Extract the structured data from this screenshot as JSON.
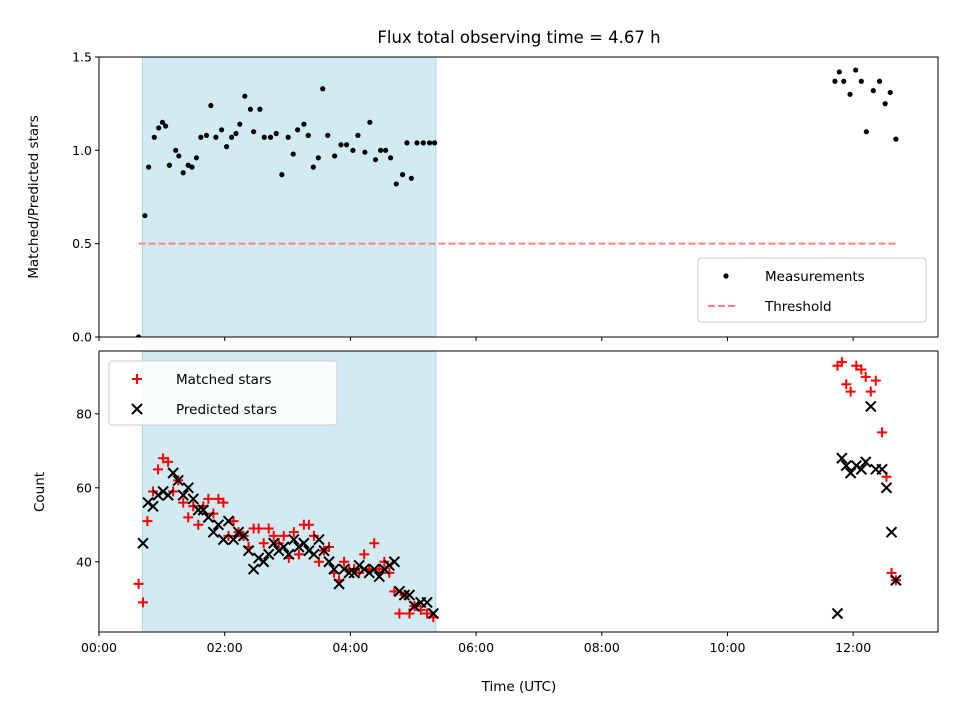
{
  "chart_data": [
    {
      "type": "scatter",
      "title": "Flux total observing time = 4.67 h",
      "xlabel": "",
      "ylabel": "Matched/Predicted stars",
      "xlim": [
        0.0,
        13.35
      ],
      "ylim": [
        0,
        1.5
      ],
      "yticks": [
        0.0,
        0.5,
        1.0,
        1.5
      ],
      "ytick_labels": [
        "0.0",
        "0.5",
        "1.0",
        "1.5"
      ],
      "xticks": [
        0,
        2,
        4,
        6,
        8,
        10,
        12
      ],
      "shaded_region": {
        "x": [
          0.69,
          5.36
        ],
        "color": "#add8e6"
      },
      "legend_position": "lower right",
      "series": [
        {
          "name": "Measurements",
          "style": "point",
          "color": "#000000",
          "x": [
            0.63,
            0.73,
            0.79,
            0.88,
            0.95,
            1.01,
            1.06,
            1.12,
            1.22,
            1.27,
            1.34,
            1.42,
            1.48,
            1.55,
            1.62,
            1.71,
            1.78,
            1.86,
            1.95,
            2.03,
            2.11,
            2.18,
            2.24,
            2.32,
            2.41,
            2.46,
            2.56,
            2.63,
            2.73,
            2.82,
            2.91,
            3.01,
            3.09,
            3.16,
            3.26,
            3.33,
            3.41,
            3.49,
            3.56,
            3.64,
            3.75,
            3.85,
            3.94,
            4.04,
            4.12,
            4.23,
            4.31,
            4.4,
            4.48,
            4.56,
            4.64,
            4.73,
            4.83,
            4.9,
            4.97,
            5.06,
            5.16,
            5.26,
            5.34,
            11.71,
            11.78,
            11.85,
            11.95,
            12.04,
            12.13,
            12.21,
            12.32,
            12.42,
            12.51,
            12.59,
            12.68
          ],
          "y": [
            0.0,
            0.65,
            0.91,
            1.07,
            1.12,
            1.15,
            1.13,
            0.92,
            1.0,
            0.97,
            0.88,
            0.92,
            0.91,
            0.96,
            1.07,
            1.08,
            1.24,
            1.07,
            1.11,
            1.02,
            1.07,
            1.09,
            1.14,
            1.29,
            1.22,
            1.1,
            1.22,
            1.07,
            1.07,
            1.09,
            0.87,
            1.07,
            0.98,
            1.11,
            1.14,
            1.08,
            0.91,
            0.96,
            1.33,
            1.08,
            0.97,
            1.03,
            1.03,
            1.0,
            1.08,
            0.99,
            1.15,
            0.95,
            1.0,
            1.0,
            0.96,
            0.82,
            0.87,
            1.04,
            0.85,
            1.04,
            1.04,
            1.04,
            1.04,
            1.37,
            1.42,
            1.37,
            1.3,
            1.43,
            1.37,
            1.1,
            1.32,
            1.37,
            1.25,
            1.31,
            1.06
          ]
        },
        {
          "name": "Threshold",
          "style": "dashed",
          "color": "#ff7f7f",
          "x": [
            0.63,
            12.68
          ],
          "y": [
            0.5,
            0.5
          ]
        }
      ]
    },
    {
      "type": "scatter",
      "title": "",
      "xlabel": "Time (UTC)",
      "ylabel": "Count",
      "xlim": [
        0.0,
        13.35
      ],
      "ylim": [
        21,
        97
      ],
      "yticks": [
        40,
        60,
        80
      ],
      "ytick_labels": [
        "40",
        "60",
        "80"
      ],
      "xticks": [
        0,
        2,
        4,
        6,
        8,
        10,
        12
      ],
      "xtick_labels": [
        "00:00",
        "02:00",
        "04:00",
        "06:00",
        "08:00",
        "10:00",
        "12:00"
      ],
      "shaded_region": {
        "x": [
          0.69,
          5.36
        ],
        "color": "#add8e6"
      },
      "legend_position": "upper left",
      "series": [
        {
          "name": "Matched stars",
          "marker": "+",
          "color": "#ff0000",
          "x": [
            0.63,
            0.7,
            0.77,
            0.86,
            0.94,
            1.02,
            1.1,
            1.18,
            1.26,
            1.34,
            1.42,
            1.5,
            1.58,
            1.66,
            1.74,
            1.82,
            1.9,
            1.98,
            2.06,
            2.14,
            2.22,
            2.3,
            2.38,
            2.46,
            2.54,
            2.62,
            2.7,
            2.78,
            2.86,
            2.94,
            3.02,
            3.1,
            3.18,
            3.26,
            3.34,
            3.42,
            3.5,
            3.58,
            3.66,
            3.74,
            3.82,
            3.9,
            3.98,
            4.06,
            4.14,
            4.22,
            4.3,
            4.38,
            4.46,
            4.54,
            4.62,
            4.7,
            4.78,
            4.86,
            4.94,
            5.02,
            5.12,
            5.22,
            5.32,
            11.75,
            11.82,
            11.89,
            11.96,
            12.05,
            12.13,
            12.2,
            12.28,
            12.36,
            12.46,
            12.53,
            12.61,
            12.68
          ],
          "y": [
            34,
            29,
            51,
            59,
            65,
            68,
            67,
            59,
            62,
            56,
            52,
            55,
            50,
            55,
            57,
            53,
            57,
            56,
            47,
            51,
            48,
            47,
            44,
            49,
            49,
            45,
            49,
            47,
            45,
            47,
            41,
            48,
            42,
            50,
            50,
            47,
            40,
            43,
            44,
            37,
            35,
            40,
            38,
            38,
            37,
            42,
            38,
            45,
            38,
            40,
            37,
            32,
            26,
            31,
            26,
            28,
            27,
            26,
            25,
            93,
            94,
            88,
            86,
            93,
            92,
            90,
            86,
            89,
            75,
            63,
            37,
            35
          ]
        },
        {
          "name": "Predicted stars",
          "marker": "x",
          "color": "#000000",
          "x": [
            0.7,
            0.78,
            0.86,
            0.94,
            1.02,
            1.1,
            1.18,
            1.26,
            1.34,
            1.42,
            1.5,
            1.58,
            1.66,
            1.74,
            1.82,
            1.9,
            1.98,
            2.06,
            2.14,
            2.22,
            2.3,
            2.38,
            2.46,
            2.54,
            2.62,
            2.7,
            2.78,
            2.86,
            2.94,
            3.02,
            3.1,
            3.18,
            3.26,
            3.34,
            3.42,
            3.5,
            3.58,
            3.66,
            3.74,
            3.82,
            3.9,
            3.98,
            4.06,
            4.14,
            4.22,
            4.3,
            4.38,
            4.46,
            4.54,
            4.62,
            4.7,
            4.78,
            4.86,
            4.94,
            5.02,
            5.12,
            5.22,
            5.32,
            11.75,
            11.82,
            11.89,
            11.96,
            12.05,
            12.13,
            12.2,
            12.28,
            12.36,
            12.46,
            12.53,
            12.61,
            12.68
          ],
          "y": [
            45,
            56,
            55,
            58,
            59,
            58,
            64,
            62,
            58,
            60,
            57,
            54,
            54,
            52,
            48,
            50,
            46,
            51,
            46,
            48,
            47,
            43,
            38,
            41,
            40,
            42,
            45,
            43,
            44,
            42,
            46,
            44,
            45,
            43,
            42,
            46,
            43,
            40,
            38,
            34,
            38,
            37,
            37,
            39,
            38,
            37,
            38,
            36,
            38,
            39,
            40,
            32,
            31,
            31,
            28,
            29,
            29,
            26,
            26,
            68,
            66,
            64,
            66,
            65,
            67,
            82,
            65,
            65,
            60,
            48,
            35
          ]
        }
      ]
    }
  ]
}
